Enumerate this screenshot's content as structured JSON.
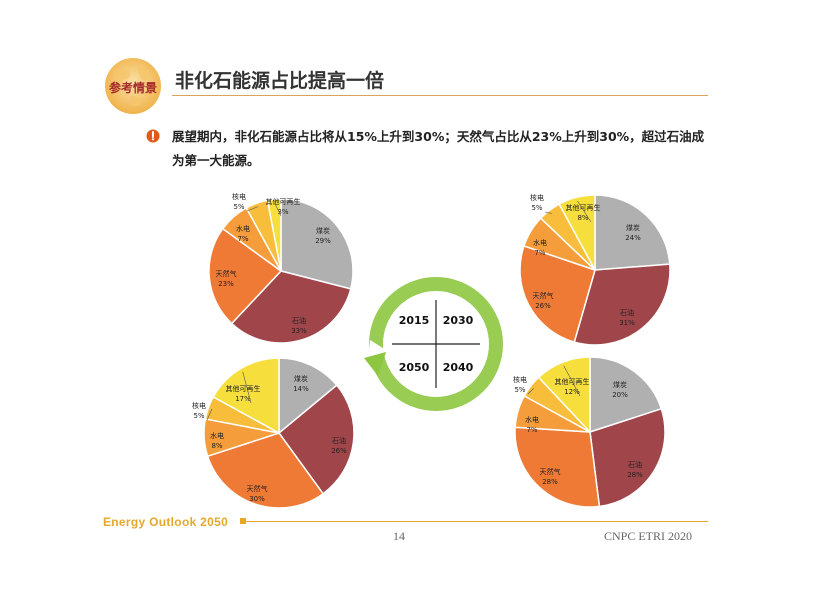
{
  "slide": {
    "badge_text": "参考情景",
    "title": "非化石能源占比提高一倍",
    "bullet": "展望期内，非化石能源占比将从15%上升到30%；天然气占比从23%上升到30%，超过石油成为第一大能源。",
    "footer_brand": "Energy Outlook 2050",
    "page_number": "14",
    "org": "CNPC ETRI 2020"
  },
  "colors": {
    "coal": "#b0b0b0",
    "oil": "#a0464a",
    "gas": "#ee7a36",
    "hydro": "#f59d3a",
    "nuclear": "#f8bd3a",
    "other_renewable": "#f6df3c",
    "cycle_green": "#8dc63f",
    "accent": "#e5a82d"
  },
  "center_cycle": {
    "years": [
      "2015",
      "2030",
      "2050",
      "2040"
    ]
  },
  "chart_data": [
    {
      "type": "pie",
      "year": "2015",
      "slices": [
        {
          "label": "煤炭",
          "value": 29,
          "text": "29%",
          "color_key": "coal"
        },
        {
          "label": "石油",
          "value": 33,
          "text": "33%",
          "color_key": "oil"
        },
        {
          "label": "天然气",
          "value": 23,
          "text": "23%",
          "color_key": "gas"
        },
        {
          "label": "水电",
          "value": 7,
          "text": "7%",
          "color_key": "hydro"
        },
        {
          "label": "核电",
          "value": 5,
          "text": "5%",
          "color_key": "nuclear"
        },
        {
          "label": "其他可再生",
          "value": 3,
          "text": "3%",
          "color_key": "other_renewable"
        }
      ]
    },
    {
      "type": "pie",
      "year": "2030",
      "slices": [
        {
          "label": "煤炭",
          "value": 24,
          "text": "24%",
          "color_key": "coal"
        },
        {
          "label": "石油",
          "value": 31,
          "text": "31%",
          "color_key": "oil"
        },
        {
          "label": "天然气",
          "value": 26,
          "text": "26%",
          "color_key": "gas"
        },
        {
          "label": "水电",
          "value": 7,
          "text": "7%",
          "color_key": "hydro"
        },
        {
          "label": "核电",
          "value": 5,
          "text": "5%",
          "color_key": "nuclear"
        },
        {
          "label": "其他可再生",
          "value": 8,
          "text": "8%",
          "color_key": "other_renewable"
        }
      ]
    },
    {
      "type": "pie",
      "year": "2050",
      "slices": [
        {
          "label": "煤炭",
          "value": 14,
          "text": "14%",
          "color_key": "coal"
        },
        {
          "label": "石油",
          "value": 26,
          "text": "26%",
          "color_key": "oil"
        },
        {
          "label": "天然气",
          "value": 30,
          "text": "30%",
          "color_key": "gas"
        },
        {
          "label": "水电",
          "value": 8,
          "text": "8%",
          "color_key": "hydro"
        },
        {
          "label": "核电",
          "value": 5,
          "text": "5%",
          "color_key": "nuclear"
        },
        {
          "label": "其他可再生",
          "value": 17,
          "text": "17%",
          "color_key": "other_renewable"
        }
      ]
    },
    {
      "type": "pie",
      "year": "2040",
      "slices": [
        {
          "label": "煤炭",
          "value": 20,
          "text": "20%",
          "color_key": "coal"
        },
        {
          "label": "石油",
          "value": 28,
          "text": "28%",
          "color_key": "oil"
        },
        {
          "label": "天然气",
          "value": 28,
          "text": "28%",
          "color_key": "gas"
        },
        {
          "label": "水电",
          "value": 7,
          "text": "7%",
          "color_key": "hydro"
        },
        {
          "label": "核电",
          "value": 5,
          "text": "5%",
          "color_key": "nuclear"
        },
        {
          "label": "其他可再生",
          "value": 12,
          "text": "12%",
          "color_key": "other_renewable"
        }
      ]
    }
  ]
}
